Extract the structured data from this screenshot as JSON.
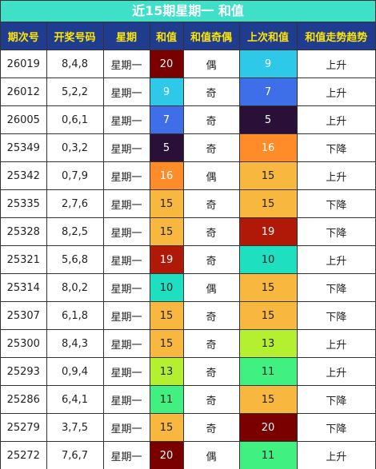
{
  "title": "近15期星期一 和值",
  "headers": [
    "期次号",
    "开奖号码",
    "星期",
    "和值",
    "和值奇偶",
    "上次和值",
    "和值走势趋势"
  ],
  "sum_colors": {
    "5": "#2a1038",
    "7": "#3f6fe8",
    "9": "#2ec8e8",
    "10": "#1ee0c0",
    "11": "#40f080",
    "13": "#b4f030",
    "15": "#f8b840",
    "16": "#ff8c28",
    "19": "#b01808",
    "20": "#7a0000"
  },
  "rows": [
    {
      "issue": "26019",
      "numbers": "8,4,8",
      "weekday": "星期一",
      "sum": "20",
      "parity": "偶",
      "prev_sum": "9",
      "trend": "上升"
    },
    {
      "issue": "26012",
      "numbers": "5,2,2",
      "weekday": "星期一",
      "sum": "9",
      "parity": "奇",
      "prev_sum": "7",
      "trend": "上升"
    },
    {
      "issue": "26005",
      "numbers": "0,6,1",
      "weekday": "星期一",
      "sum": "7",
      "parity": "奇",
      "prev_sum": "5",
      "trend": "上升"
    },
    {
      "issue": "25349",
      "numbers": "0,3,2",
      "weekday": "星期一",
      "sum": "5",
      "parity": "奇",
      "prev_sum": "16",
      "trend": "下降"
    },
    {
      "issue": "25342",
      "numbers": "0,7,9",
      "weekday": "星期一",
      "sum": "16",
      "parity": "偶",
      "prev_sum": "15",
      "trend": "上升"
    },
    {
      "issue": "25335",
      "numbers": "2,7,6",
      "weekday": "星期一",
      "sum": "15",
      "parity": "奇",
      "prev_sum": "15",
      "trend": "下降"
    },
    {
      "issue": "25328",
      "numbers": "8,2,5",
      "weekday": "星期一",
      "sum": "15",
      "parity": "奇",
      "prev_sum": "19",
      "trend": "下降"
    },
    {
      "issue": "25321",
      "numbers": "5,6,8",
      "weekday": "星期一",
      "sum": "19",
      "parity": "奇",
      "prev_sum": "10",
      "trend": "上升"
    },
    {
      "issue": "25314",
      "numbers": "8,0,2",
      "weekday": "星期一",
      "sum": "10",
      "parity": "偶",
      "prev_sum": "15",
      "trend": "下降"
    },
    {
      "issue": "25307",
      "numbers": "6,1,8",
      "weekday": "星期一",
      "sum": "15",
      "parity": "奇",
      "prev_sum": "15",
      "trend": "下降"
    },
    {
      "issue": "25300",
      "numbers": "8,4,3",
      "weekday": "星期一",
      "sum": "15",
      "parity": "奇",
      "prev_sum": "13",
      "trend": "上升"
    },
    {
      "issue": "25293",
      "numbers": "0,9,4",
      "weekday": "星期一",
      "sum": "13",
      "parity": "奇",
      "prev_sum": "11",
      "trend": "上升"
    },
    {
      "issue": "25286",
      "numbers": "6,4,1",
      "weekday": "星期一",
      "sum": "11",
      "parity": "奇",
      "prev_sum": "15",
      "trend": "下降"
    },
    {
      "issue": "25279",
      "numbers": "3,7,5",
      "weekday": "星期一",
      "sum": "15",
      "parity": "奇",
      "prev_sum": "20",
      "trend": "下降"
    },
    {
      "issue": "25272",
      "numbers": "7,6,7",
      "weekday": "星期一",
      "sum": "20",
      "parity": "偶",
      "prev_sum": "11",
      "trend": "上升"
    }
  ]
}
